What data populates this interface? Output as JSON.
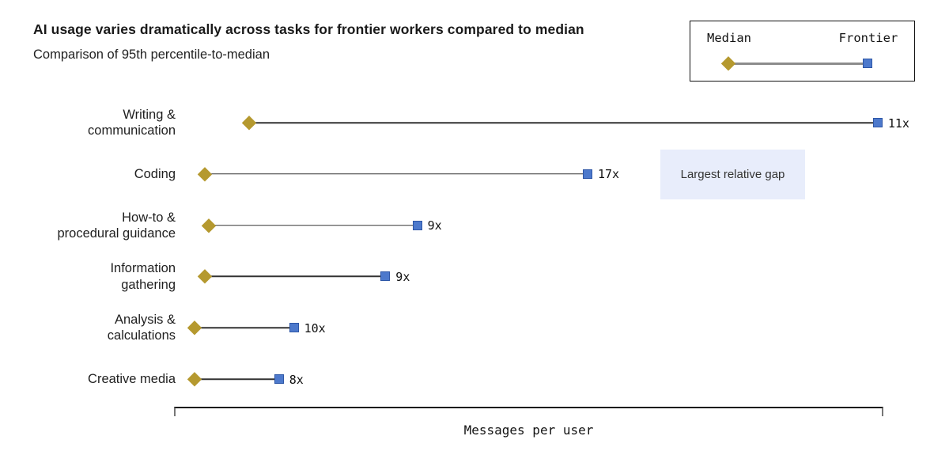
{
  "chart_data": {
    "type": "dumbbell",
    "title": "AI usage varies dramatically across tasks for frontier workers compared to median",
    "subtitle": "Comparison of 95th percentile-to-median",
    "xlabel": "Messages per user",
    "x_axis_numeric_labels_shown": false,
    "scale_note": "x axis has no tick values; series values are relative positions on a 0-100 scale estimated from marker pixel positions",
    "xlim": [
      0,
      100
    ],
    "categories": [
      "Writing &\ncommunication",
      "Coding",
      "How-to &\nprocedural guidance",
      "Information\ngathering",
      "Analysis &\ncalculations",
      "Creative media"
    ],
    "series": [
      {
        "name": "Median",
        "values": [
          10.6,
          4.3,
          4.9,
          4.3,
          2.9,
          2.9
        ]
      },
      {
        "name": "Frontier",
        "values": [
          99.2,
          58.3,
          34.3,
          29.8,
          16.9,
          14.8
        ]
      }
    ],
    "ratio_labels": [
      "11x",
      "17x",
      "9x",
      "9x",
      "10x",
      "8x"
    ],
    "legend": {
      "median_label": "Median",
      "frontier_label": "Frontier",
      "position": "top-right",
      "boxed": true
    },
    "annotation": {
      "text": "Largest relative gap",
      "applies_to_category": "Coding"
    },
    "colors": {
      "median_marker": "#b5992f",
      "frontier_marker_fill": "#4d79cc",
      "frontier_marker_border": "#2d56a6",
      "connector_line": "#333333",
      "legend_line": "#8c8c8c",
      "annotation_bg": "#e8edfb",
      "text": "#1a1a1a"
    }
  }
}
